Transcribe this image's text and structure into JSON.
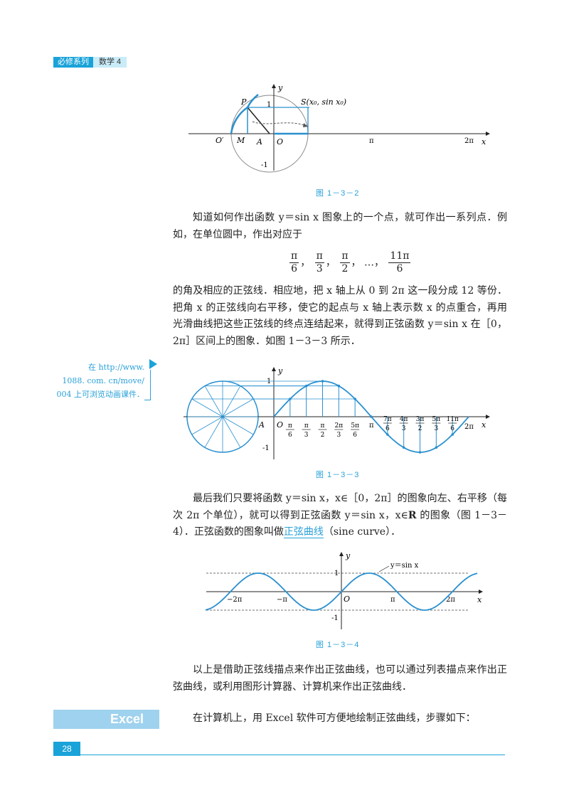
{
  "header": {
    "series": "必修系列",
    "subject": "数学 4"
  },
  "fig1": {
    "caption": "图 1－3－2",
    "labels": {
      "y": "y",
      "x": "x",
      "one": "1",
      "neg_one": "-1",
      "P": "P",
      "S": "S(x₀, sin x₀)",
      "O_prime": "O′",
      "M": "M",
      "A": "A",
      "O": "O",
      "pi": "π",
      "two_pi": "2π"
    }
  },
  "para1": "知道如何作出函数 y＝sin x 图象上的一个点，就可作出一系列点．例如，在单位圆中，作出对应于",
  "formula": {
    "f1_num": "π",
    "f1_den": "6",
    "f2_num": "π",
    "f2_den": "3",
    "f3_num": "π",
    "f3_den": "2",
    "dots": "…，",
    "f4_num": "11π",
    "f4_den": "6"
  },
  "para2": "的角及相应的正弦线．相应地，把 x 轴上从 0 到 2π 这一段分成 12 等份．把角 x 的正弦线向右平移，使它的起点与 x 轴上表示数 x 的点重合，再用光滑曲线把这些正弦线的终点连结起来，就得到正弦函数 y＝sin x 在［0，2π］区间上的图象．如图 1－3－3 所示．",
  "side_note": [
    "在 http://www.",
    "1088. com. cn/move/",
    "004 上可浏览动画课件．"
  ],
  "fig2": {
    "caption": "图 1－3－3",
    "labels": {
      "y": "y",
      "x": "x",
      "one": "1",
      "neg_one": "-1",
      "A": "A",
      "O": "O",
      "pi": "π",
      "two_pi": "2π"
    },
    "ticks": [
      {
        "num": "π",
        "den": "6"
      },
      {
        "num": "π",
        "den": "3"
      },
      {
        "num": "π",
        "den": "2"
      },
      {
        "num": "2π",
        "den": "3"
      },
      {
        "num": "5π",
        "den": "6"
      },
      {
        "num": "7π",
        "den": "6"
      },
      {
        "num": "4π",
        "den": "3"
      },
      {
        "num": "3π",
        "den": "2"
      },
      {
        "num": "5π",
        "den": "3"
      },
      {
        "num": "11π",
        "den": "6"
      }
    ]
  },
  "para3_a": "最后我们只要将函数 y＝sin x，x∈［0，2π］的图象向左、右平移（每次 2π 个单位），就可以得到正弦函数 y＝sin x，x∈",
  "para3_R": "R",
  "para3_b": " 的图象（图 1－3－4）．正弦函数的图象叫做",
  "para3_link": "正弦曲线",
  "para3_c": "（sine curve）．",
  "fig3": {
    "caption": "图 1－3－4",
    "labels": {
      "y": "y",
      "x": "x",
      "one": "1",
      "neg_one": "-1",
      "O": "O",
      "m2pi": "−2π",
      "mpi": "−π",
      "pi": "π",
      "two_pi": "2π",
      "curve": "y＝sin x"
    }
  },
  "para4": "以上是借助正弦线描点来作出正弦曲线，也可以通过列表描点来作出正弦曲线，或利用图形计算器、计算机来作出正弦曲线．",
  "excel_label": "Excel",
  "para5": "在计算机上，用 Excel 软件可方便地绘制正弦曲线，步骤如下：",
  "page_number": "28",
  "colors": {
    "accent": "#1aa3d9",
    "curve": "#2a90cf",
    "caption": "#2aa1d8"
  }
}
